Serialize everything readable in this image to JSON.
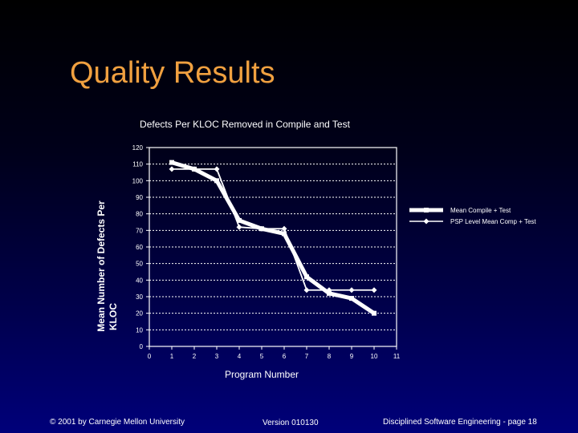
{
  "slide": {
    "title": "Quality Results",
    "title_color": "#f0a040"
  },
  "chart_data": {
    "type": "line",
    "title": "Defects Per KLOC Removed in Compile and Test",
    "xlabel": "Program Number",
    "ylabel": "Mean Number of Defects Per KLOC",
    "xlim": [
      0,
      11
    ],
    "ylim": [
      0,
      120
    ],
    "x_ticks": [
      0,
      1,
      2,
      3,
      4,
      5,
      6,
      7,
      8,
      9,
      10,
      11
    ],
    "y_ticks": [
      0,
      10,
      20,
      30,
      40,
      50,
      60,
      70,
      80,
      90,
      100,
      110,
      120
    ],
    "grid": true,
    "legend_position": "right",
    "series": [
      {
        "name": "Mean Compile + Test",
        "x": [
          1,
          2,
          3,
          4,
          5,
          6,
          7,
          8,
          9,
          10
        ],
        "values": [
          111,
          107,
          100,
          76,
          71,
          68,
          42,
          32,
          29,
          20
        ],
        "color": "#ffffff",
        "style": "thick-square"
      },
      {
        "name": "PSP Level Mean Comp + Test",
        "x": [
          1,
          2,
          3,
          4,
          5,
          6,
          7,
          8,
          9,
          10
        ],
        "values": [
          107,
          107,
          107,
          72,
          71,
          71,
          34,
          34,
          34,
          34
        ],
        "color": "#ffffff",
        "style": "thin-diamond"
      }
    ]
  },
  "footer": {
    "copyright": "© 2001 by Carnegie Mellon University",
    "version": "Version 010130",
    "page": "Disciplined Software Engineering - page 18"
  }
}
